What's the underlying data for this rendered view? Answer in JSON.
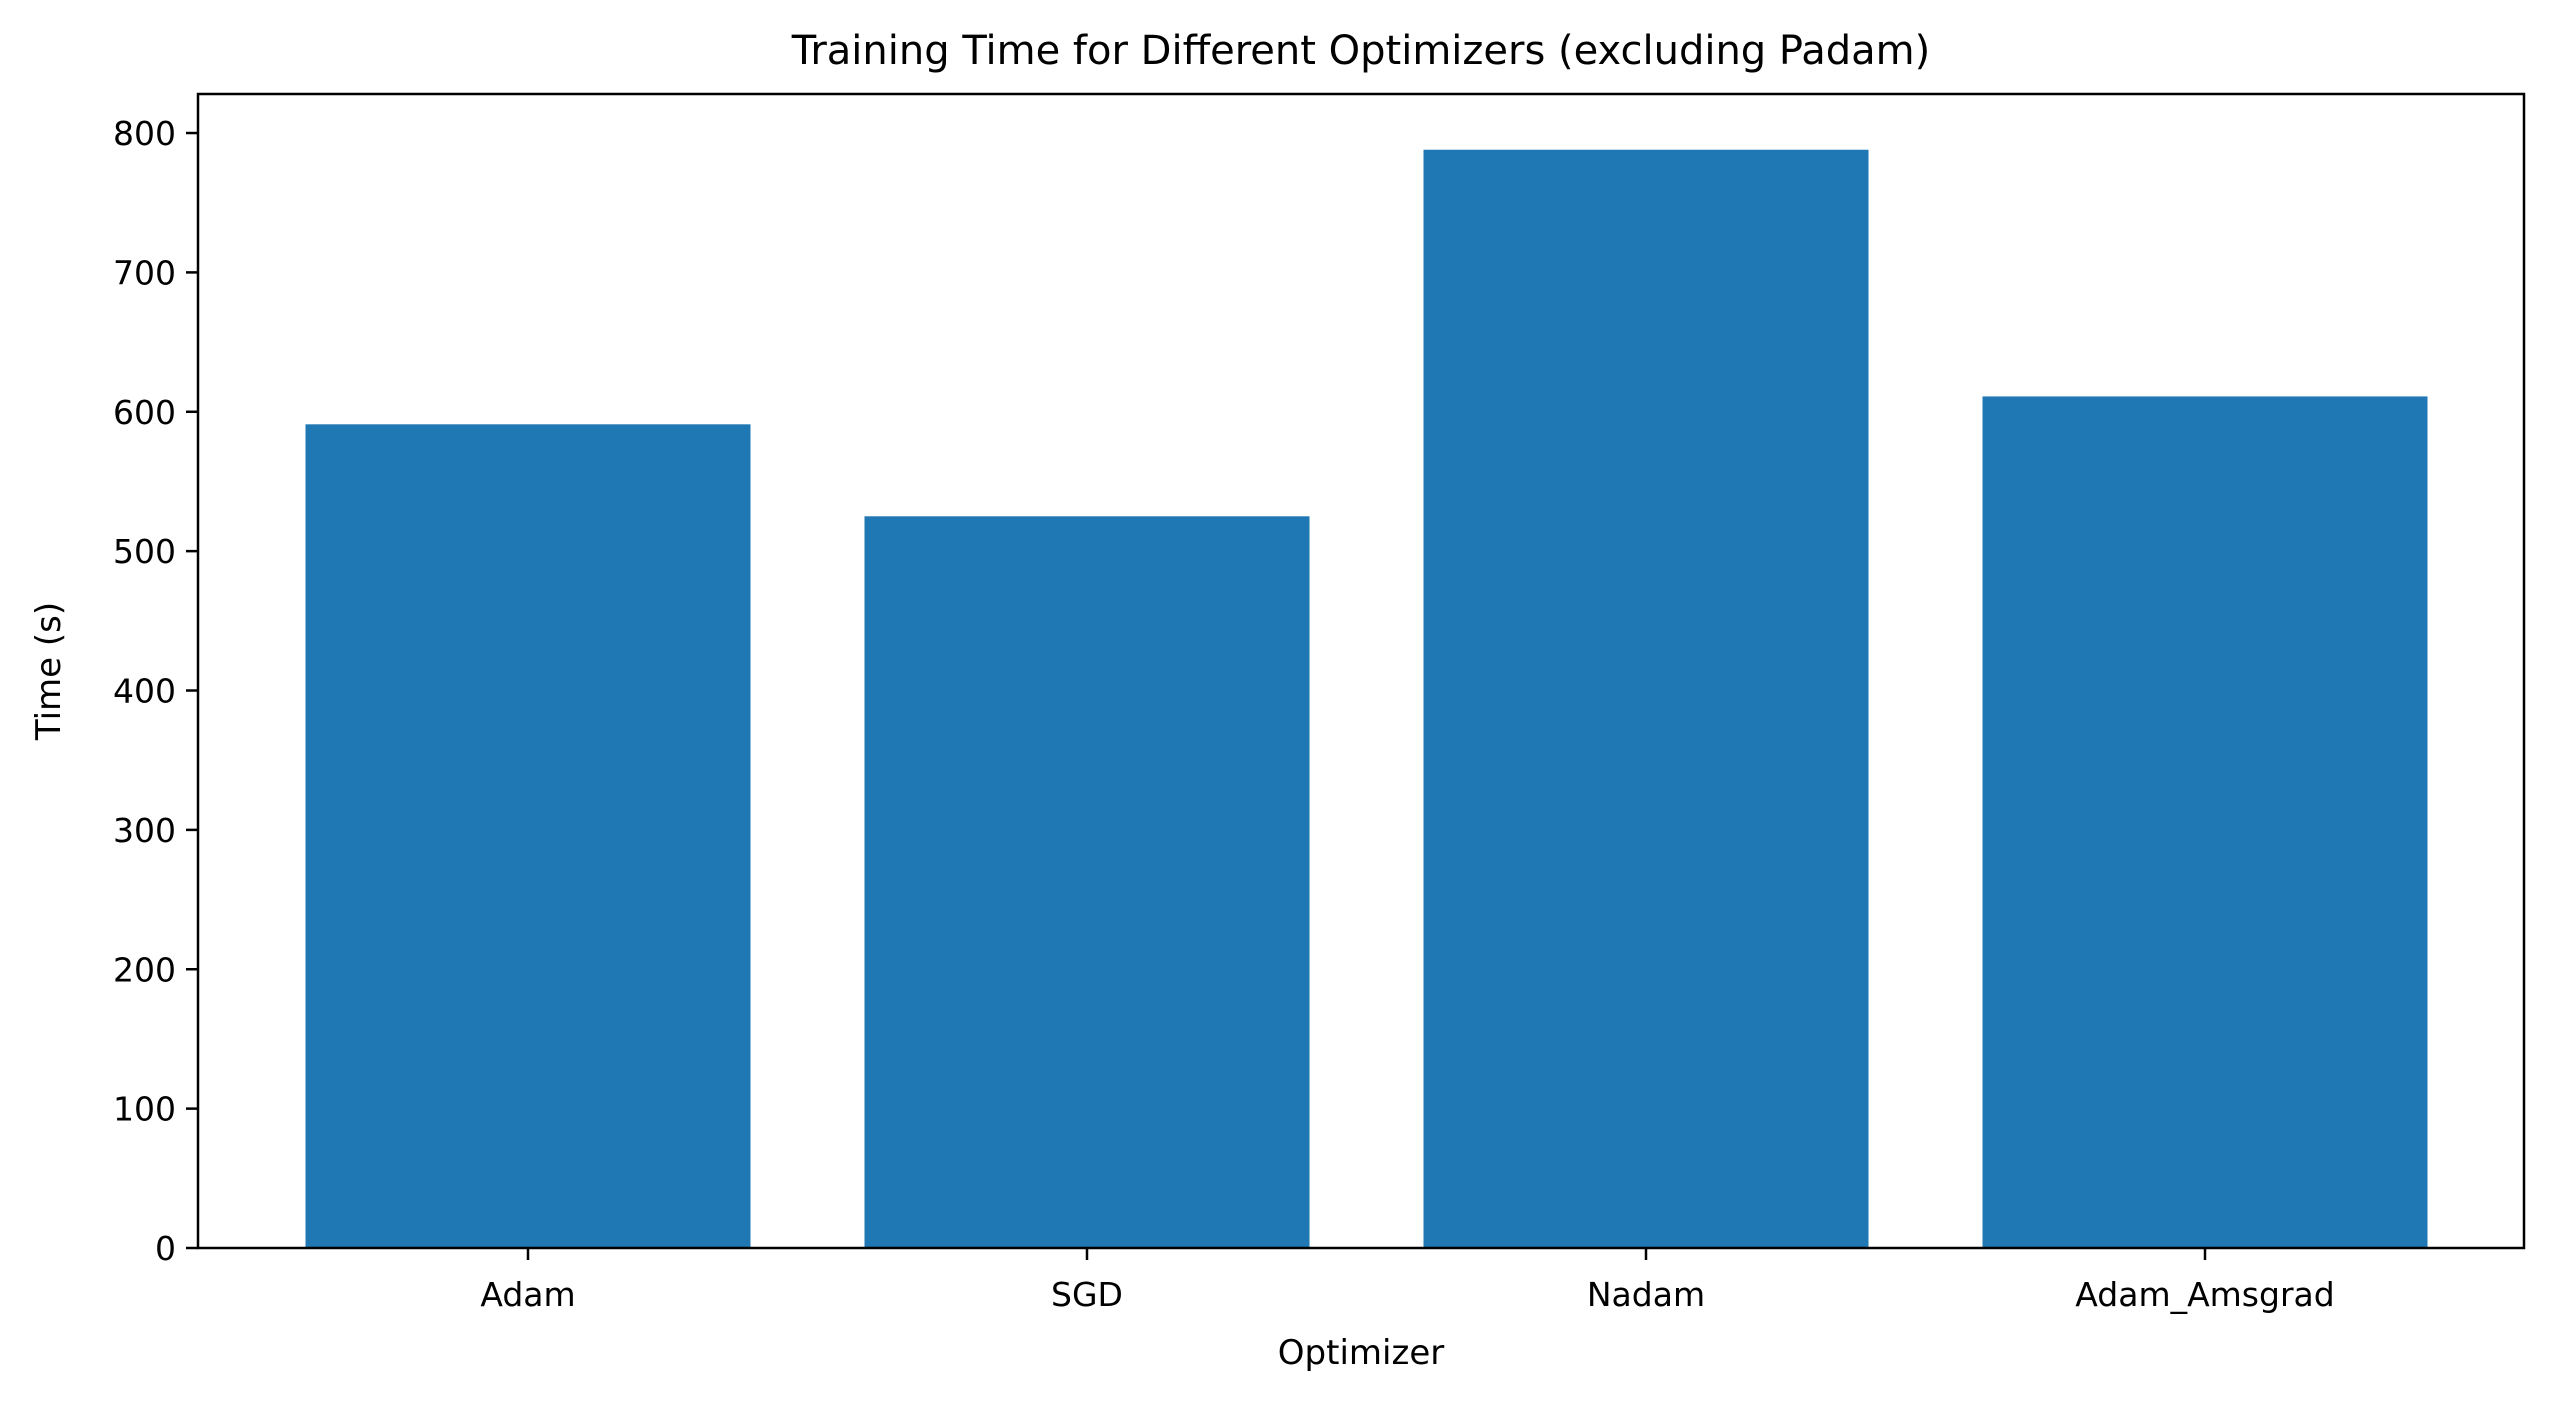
{
  "chart_data": {
    "type": "bar",
    "title": "Training Time for Different Optimizers (excluding Padam)",
    "xlabel": "Optimizer",
    "ylabel": "Time (s)",
    "categories": [
      "Adam",
      "SGD",
      "Nadam",
      "Adam_Amsgrad"
    ],
    "values": [
      591,
      525,
      788,
      611
    ],
    "ylim": [
      0,
      828
    ],
    "yticks": [
      0,
      100,
      200,
      300,
      400,
      500,
      600,
      700,
      800
    ],
    "grid": false,
    "legend": "none",
    "bar_color": "#1f77b4"
  }
}
